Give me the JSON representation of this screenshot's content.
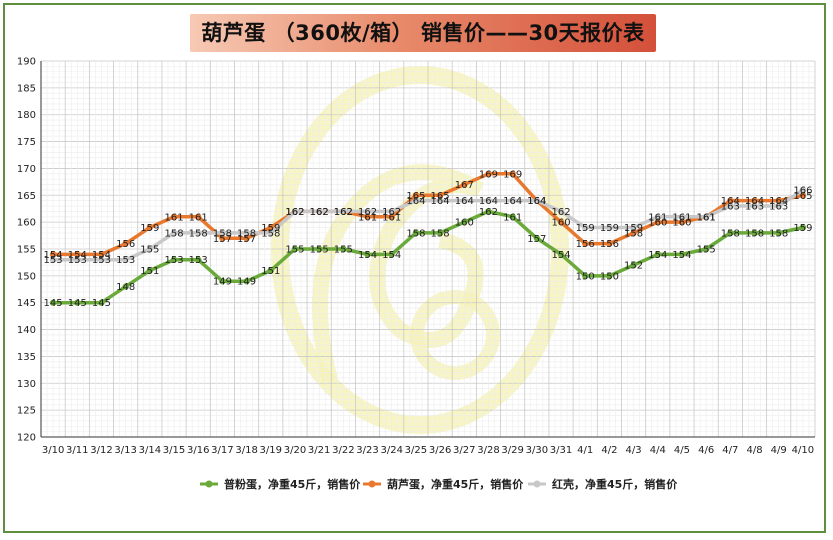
{
  "title": "葫芦蛋 （360枚/箱） 销售价——30天报价表",
  "chart_data": {
    "type": "line",
    "title": "葫芦蛋 （360枚/箱） 销售价——30天报价表",
    "categories": [
      "3/10",
      "3/11",
      "3/12",
      "3/13",
      "3/14",
      "3/15",
      "3/16",
      "3/17",
      "3/18",
      "3/19",
      "3/20",
      "3/21",
      "3/22",
      "3/23",
      "3/24",
      "3/25",
      "3/26",
      "3/27",
      "3/28",
      "3/29",
      "3/30",
      "3/31",
      "4/1",
      "4/2",
      "4/3",
      "4/4",
      "4/5",
      "4/6",
      "4/7",
      "4/8",
      "4/9",
      "4/10"
    ],
    "ylim": [
      120,
      190
    ],
    "yticks": [
      120,
      125,
      130,
      135,
      140,
      145,
      150,
      155,
      160,
      165,
      170,
      175,
      180,
      185,
      190
    ],
    "grid": true,
    "legend_position": "bottom",
    "series": [
      {
        "name": "普粉蛋，净重45斤，销售价",
        "color": "#6aaa3a",
        "values": [
          145,
          145,
          145,
          148,
          151,
          153,
          153,
          149,
          149,
          151,
          155,
          155,
          155,
          154,
          154,
          158,
          158,
          160,
          162,
          161,
          157,
          154,
          150,
          150,
          152,
          154,
          154,
          155,
          158,
          158,
          158,
          159
        ]
      },
      {
        "name": "葫芦蛋，净重45斤，销售价",
        "color": "#e8782e",
        "values": [
          154,
          154,
          154,
          156,
          159,
          161,
          161,
          157,
          157,
          159,
          162,
          162,
          162,
          161,
          161,
          165,
          165,
          167,
          169,
          169,
          164,
          160,
          156,
          156,
          158,
          160,
          160,
          161,
          164,
          164,
          164,
          165
        ]
      },
      {
        "name": "红壳，净重45斤，销售价",
        "color": "#c8c8c8",
        "values": [
          153,
          153,
          153,
          153,
          155,
          158,
          158,
          158,
          158,
          158,
          162,
          162,
          162,
          162,
          162,
          164,
          164,
          164,
          164,
          164,
          164,
          162,
          159,
          159,
          159,
          161,
          161,
          161,
          163,
          163,
          163,
          166
        ]
      }
    ]
  }
}
